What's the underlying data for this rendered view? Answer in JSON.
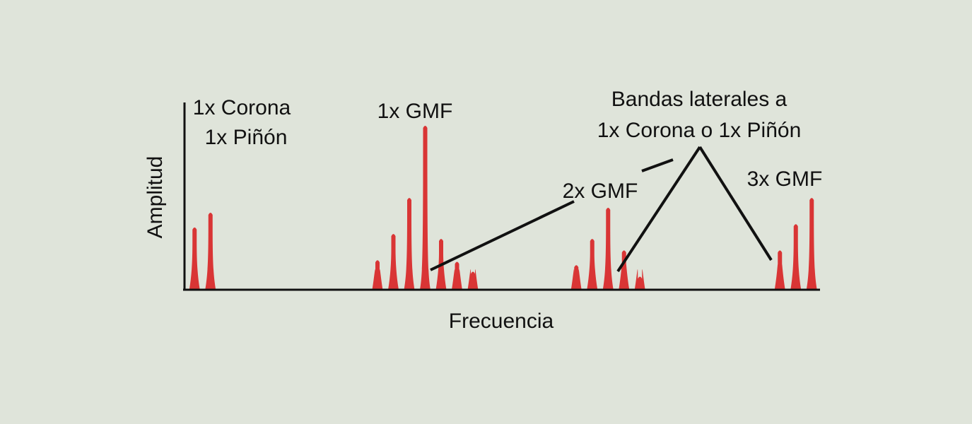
{
  "chart_data": {
    "type": "bar",
    "xlabel": "Frecuencia",
    "ylabel": "Amplitud",
    "colors": {
      "peak": "#d93535",
      "axis": "#111111",
      "background": "#dfe4da"
    },
    "grid": false,
    "peaks": [
      {
        "group": "1x Corona / 1x Piñón",
        "x": 0.5,
        "y": 38
      },
      {
        "group": "1x Corona / 1x Piñón",
        "x": 1.5,
        "y": 47
      },
      {
        "group": "1x GMF",
        "x": 12.0,
        "y": 18
      },
      {
        "group": "1x GMF",
        "x": 13.0,
        "y": 34
      },
      {
        "group": "1x GMF",
        "x": 14.0,
        "y": 56
      },
      {
        "group": "1x GMF",
        "x": 15.0,
        "y": 100
      },
      {
        "group": "1x GMF",
        "x": 16.0,
        "y": 31
      },
      {
        "group": "1x GMF",
        "x": 17.0,
        "y": 17
      },
      {
        "group": "1x GMF",
        "x": 18.0,
        "y": 11
      },
      {
        "group": "2x GMF",
        "x": 24.5,
        "y": 15
      },
      {
        "group": "2x GMF",
        "x": 25.5,
        "y": 31
      },
      {
        "group": "2x GMF",
        "x": 26.5,
        "y": 50
      },
      {
        "group": "2x GMF",
        "x": 27.5,
        "y": 24
      },
      {
        "group": "2x GMF",
        "x": 28.5,
        "y": 8
      },
      {
        "group": "3x GMF",
        "x": 37.3,
        "y": 24
      },
      {
        "group": "3x GMF",
        "x": 38.3,
        "y": 40
      },
      {
        "group": "3x GMF",
        "x": 39.3,
        "y": 56
      }
    ],
    "xlim": [
      0,
      40
    ],
    "ylim": [
      0,
      100
    ],
    "annotations": [
      {
        "text": "1x Corona"
      },
      {
        "text": "1x Piñón"
      },
      {
        "text": "1x GMF"
      },
      {
        "text": "2x GMF"
      },
      {
        "text": "3x GMF"
      },
      {
        "text": "Bandas laterales a"
      },
      {
        "text": "1x Corona o 1x Piñón"
      }
    ]
  }
}
